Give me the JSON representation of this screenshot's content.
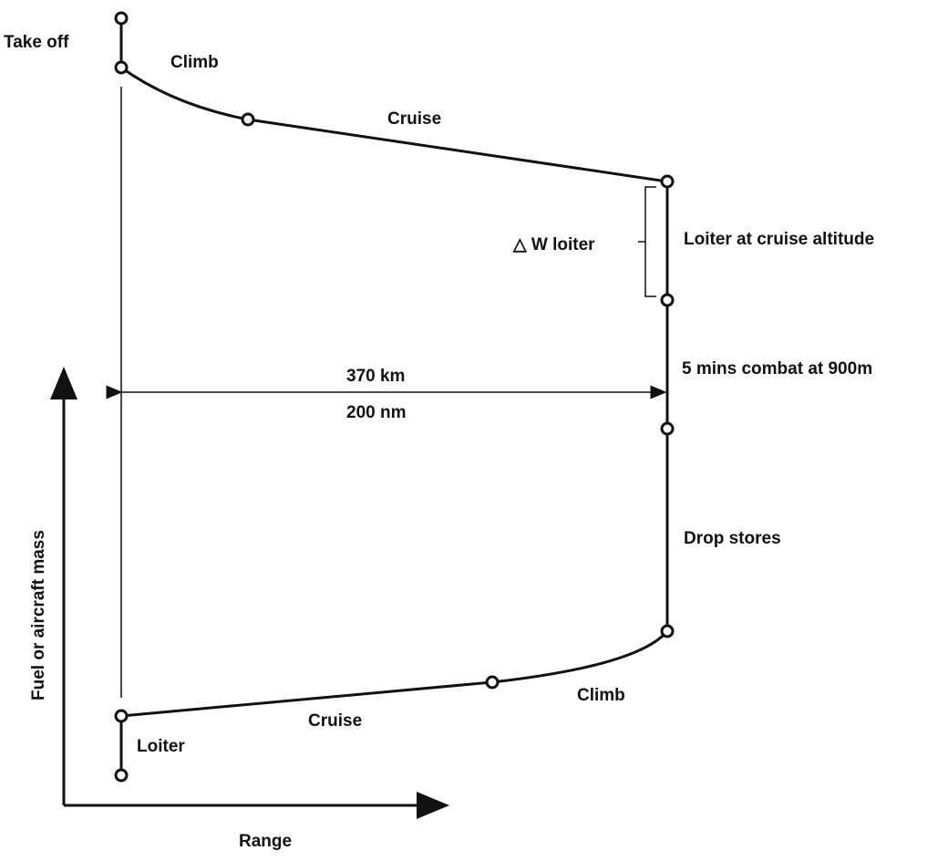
{
  "labels": {
    "take_off": "Take off",
    "climb_out": "Climb",
    "cruise_out": "Cruise",
    "delta_w": "△ W loiter",
    "loiter_cruise": "Loiter at cruise altitude",
    "distance_km": "370 km",
    "distance_nm": "200  nm",
    "combat": "5 mins combat at 900m",
    "drop": "Drop stores",
    "climb_back": "Climb",
    "cruise_back": "Cruise",
    "loiter": "Loiter",
    "y_axis": "Fuel or aircraft mass",
    "x_axis": "Range"
  }
}
